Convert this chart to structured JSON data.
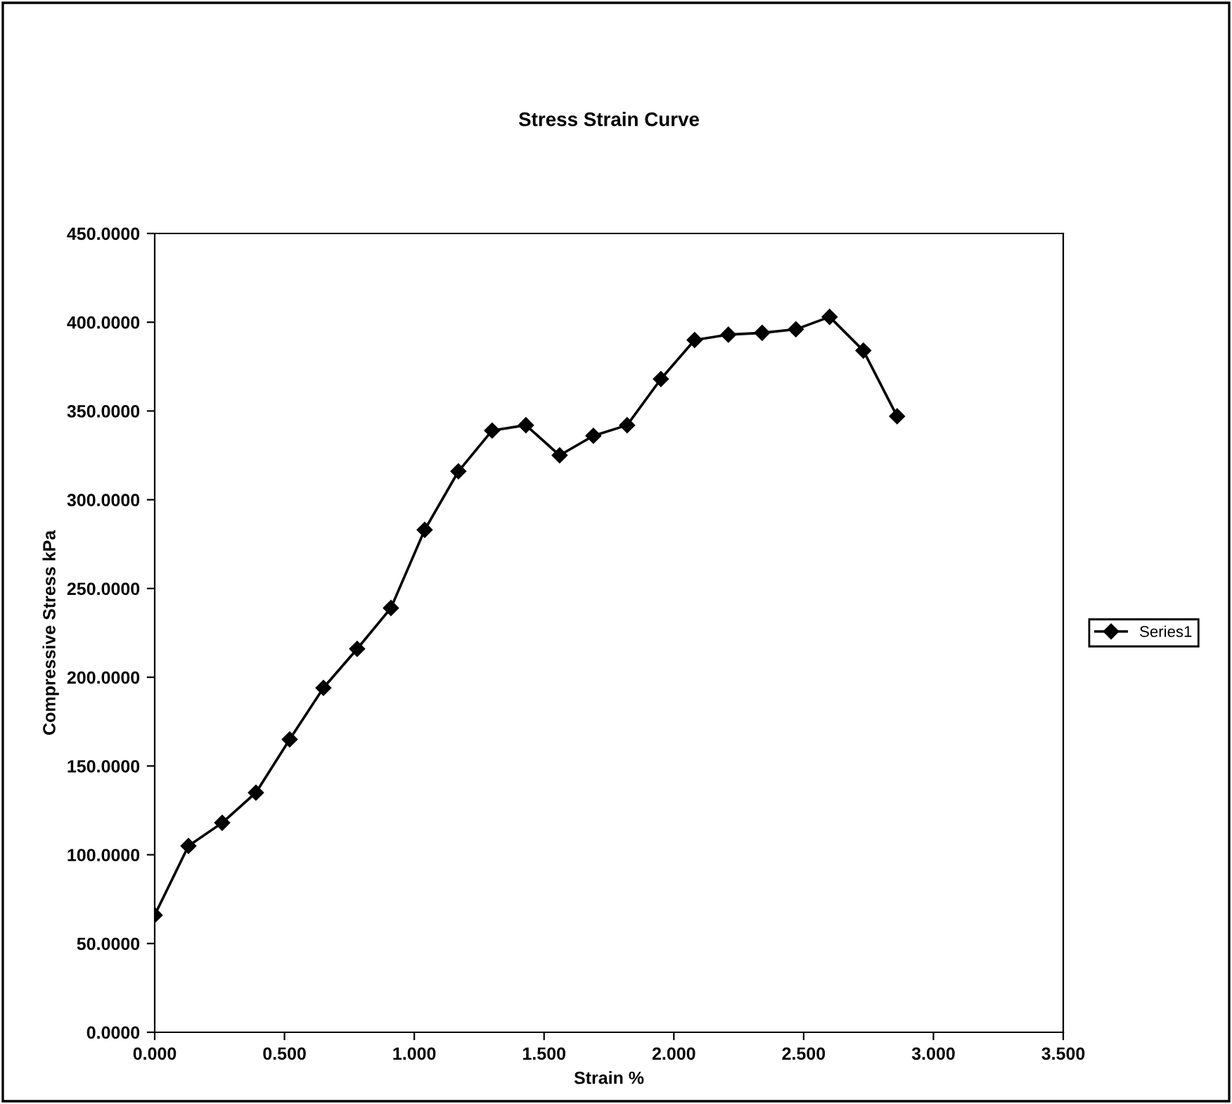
{
  "chart_data": {
    "type": "line",
    "title": "Stress Strain Curve",
    "xlabel": "Strain %",
    "ylabel": "Compressive Stress kPa",
    "x": [
      0,
      0.13,
      0.26,
      0.39,
      0.52,
      0.65,
      0.78,
      0.91,
      1.04,
      1.17,
      1.3,
      1.43,
      1.56,
      1.69,
      1.82,
      1.95,
      2.08,
      2.21,
      2.34,
      2.47,
      2.6,
      2.73,
      2.86
    ],
    "series": [
      {
        "name": "Series1",
        "color": "#000000",
        "values": [
          66,
          105,
          118,
          135,
          165,
          194,
          216,
          239,
          283,
          316,
          339,
          342,
          325,
          336,
          342,
          368,
          390,
          393,
          394,
          396,
          403,
          384,
          347
        ]
      }
    ],
    "xlim": [
      0,
      3.5
    ],
    "xticks": [
      {
        "value": 0,
        "label": "0.000"
      },
      {
        "value": 0.5,
        "label": "0.500"
      },
      {
        "value": 1,
        "label": "1.000"
      },
      {
        "value": 1.5,
        "label": "1.500"
      },
      {
        "value": 2,
        "label": "2.000"
      },
      {
        "value": 2.5,
        "label": "2.500"
      },
      {
        "value": 3,
        "label": "3.000"
      },
      {
        "value": 3.5,
        "label": "3.500"
      }
    ],
    "ylim": [
      0,
      450
    ],
    "yticks": [
      {
        "value": 0,
        "label": "0.0000"
      },
      {
        "value": 50,
        "label": "50.0000"
      },
      {
        "value": 100,
        "label": "100.0000"
      },
      {
        "value": 150,
        "label": "150.0000"
      },
      {
        "value": 200,
        "label": "200.0000"
      },
      {
        "value": 250,
        "label": "250.0000"
      },
      {
        "value": 300,
        "label": "300.0000"
      },
      {
        "value": 350,
        "label": "350.0000"
      },
      {
        "value": 400,
        "label": "400.0000"
      },
      {
        "value": 450,
        "label": "450.0000"
      }
    ],
    "grid": false,
    "legend": "right",
    "marker": "diamond",
    "line_style": "solid"
  }
}
